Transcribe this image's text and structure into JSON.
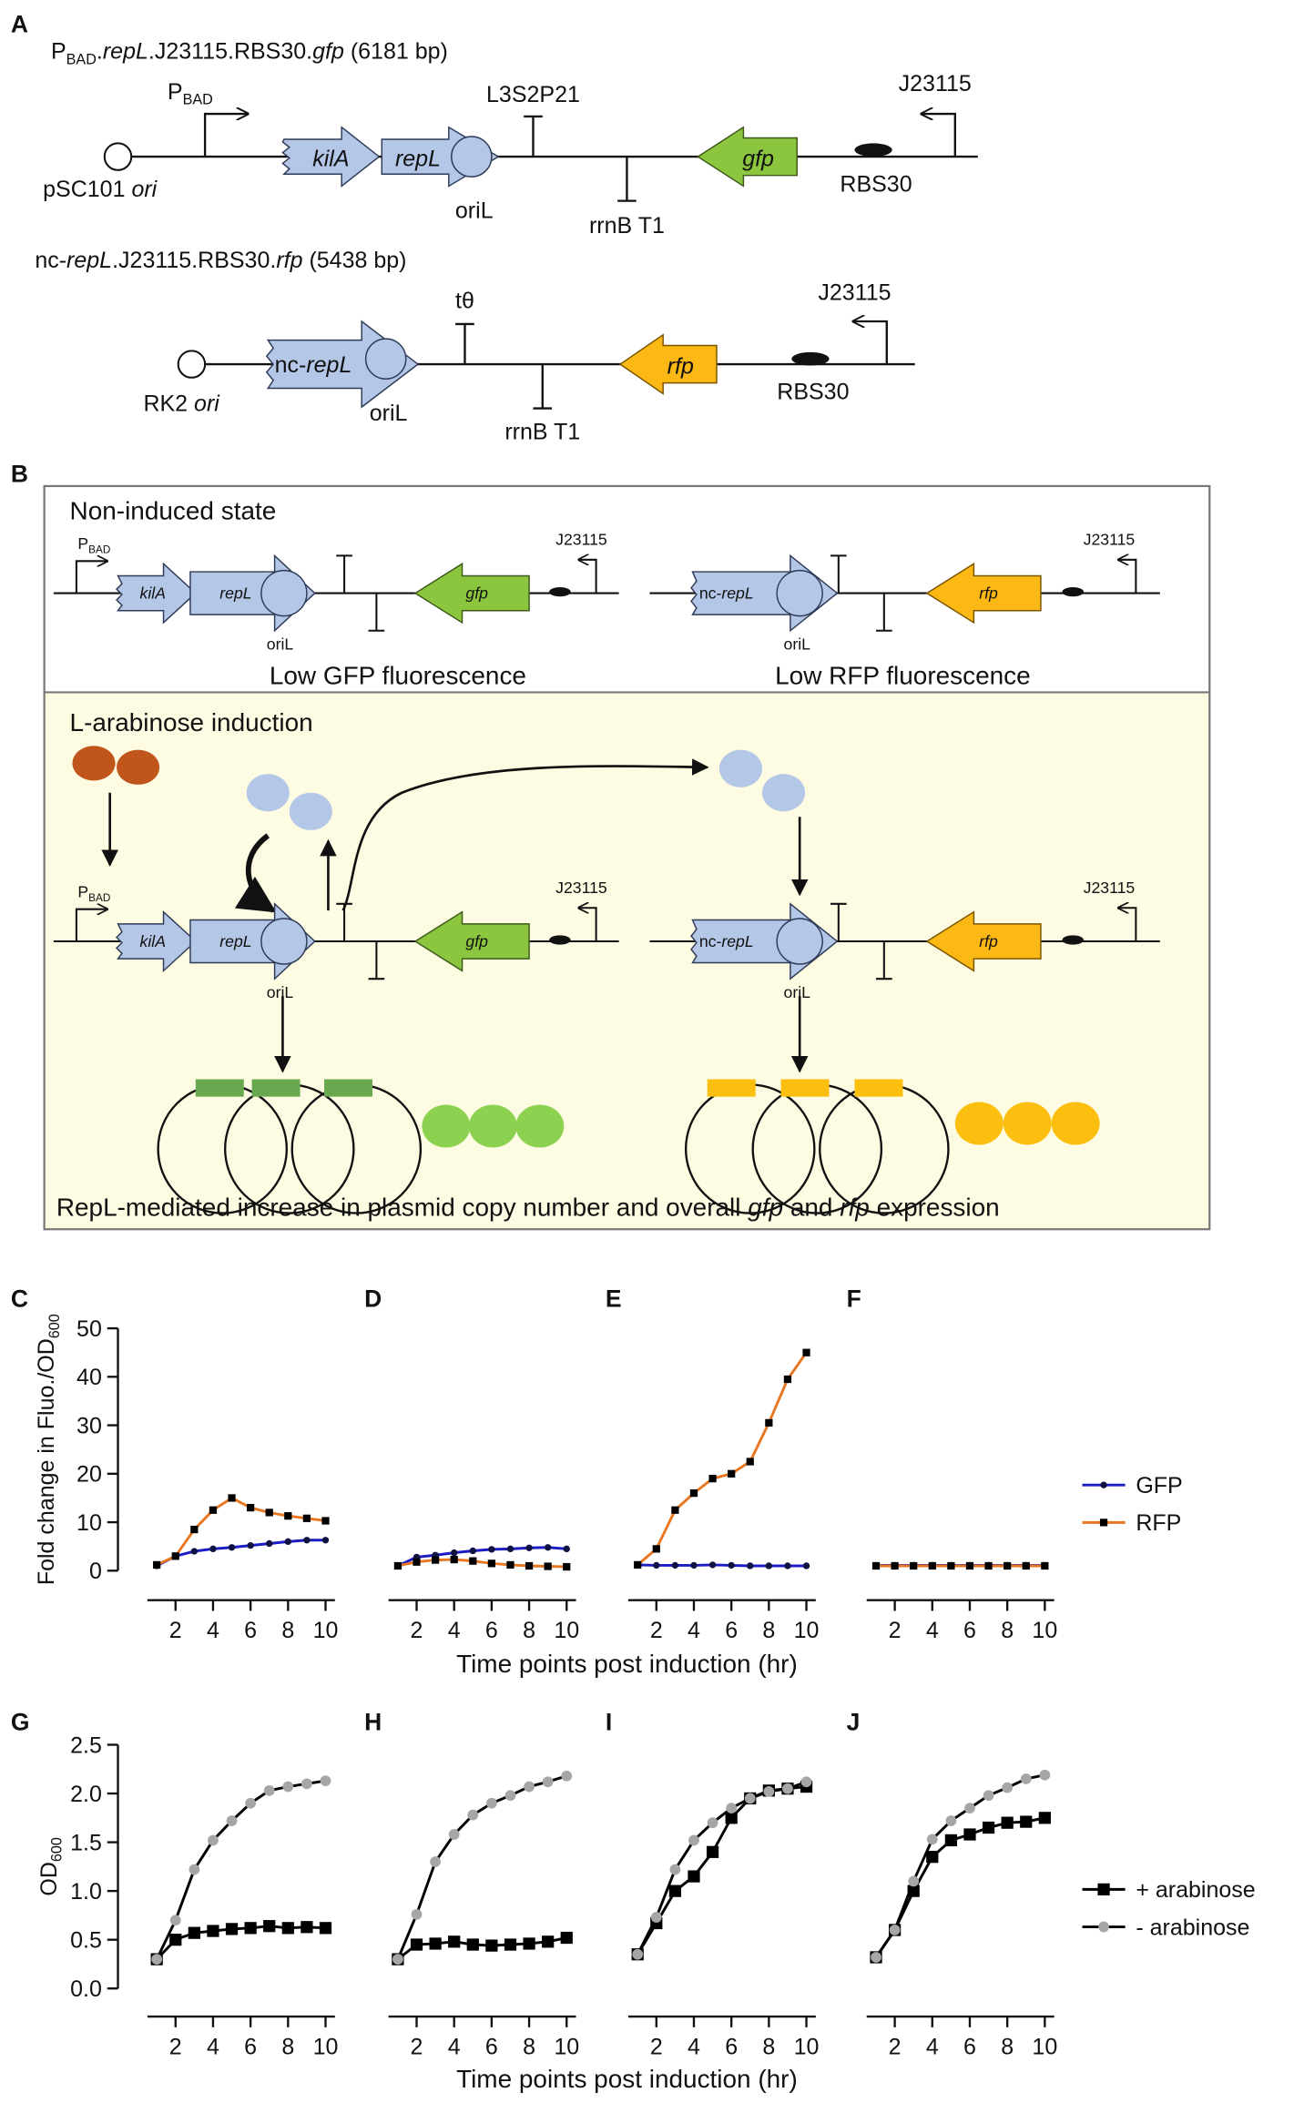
{
  "panel_a": {
    "label": "A",
    "construct1": {
      "title": [
        "P",
        "BAD",
        ".",
        "repL",
        ".J23115.RBS30.",
        "gfp",
        " (6181 bp)"
      ],
      "ori": [
        "pSC101 ",
        "ori"
      ],
      "promoter": [
        "P",
        "BAD"
      ],
      "genes": [
        "kilA",
        "repL",
        "gfp"
      ],
      "ori_l": "oriL",
      "terminators": [
        "L3S2P21",
        "rrnB T1"
      ],
      "rbs": "RBS30",
      "promoter2": "J23115"
    },
    "construct2": {
      "title": [
        "nc-",
        "repL",
        ".J23115.RBS30.",
        "rfp",
        " (5438 bp)"
      ],
      "ori": [
        "RK2 ",
        "ori"
      ],
      "genes": [
        [
          "nc-",
          "repL"
        ],
        "rfp"
      ],
      "ori_l": "oriL",
      "terminators": [
        "tθ",
        "rrnB T1"
      ],
      "rbs": "RBS30",
      "promoter2": "J23115"
    }
  },
  "panel_b": {
    "label": "B",
    "noninduced": {
      "heading": "Non-induced state",
      "left": {
        "promoter": [
          "P",
          "BAD"
        ],
        "genes": [
          "kilA",
          "repL",
          "gfp"
        ],
        "ori_l": "oriL",
        "promoter2": "J23115",
        "caption": "Low GFP fluorescence"
      },
      "right": {
        "genes": [
          [
            "nc-",
            "repL"
          ],
          "rfp"
        ],
        "ori_l": "oriL",
        "promoter2": "J23115",
        "caption": "Low RFP fluorescence"
      }
    },
    "induced": {
      "heading": "L-arabinose induction",
      "left": {
        "promoter": [
          "P",
          "BAD"
        ],
        "genes": [
          "kilA",
          "repL",
          "gfp"
        ],
        "ori_l": "oriL",
        "promoter2": "J23115"
      },
      "right": {
        "genes": [
          [
            "nc-",
            "repL"
          ],
          "rfp"
        ],
        "ori_l": "oriL",
        "promoter2": "J23115"
      },
      "caption": [
        "RepL-mediated increase in plasmid copy number and overall ",
        "gfp",
        " and ",
        "rfp",
        " expression"
      ]
    }
  },
  "shared": {
    "xlabel_top": "Time points post induction (hr)",
    "xlabel_bottom": "Time points post induction (hr)"
  },
  "chart_data": [
    {
      "type": "line",
      "panel": "C",
      "x": [
        1,
        2,
        3,
        4,
        5,
        6,
        7,
        8,
        9,
        10
      ],
      "xlim": [
        0.5,
        10.5
      ],
      "xticks": [
        2,
        4,
        6,
        8,
        10
      ],
      "ylim": [
        0,
        50
      ],
      "yticks": [
        0,
        10,
        20,
        30,
        40,
        50
      ],
      "ylabel": "Fold change in Fluo./OD",
      "ylabel_sub": "600",
      "series": [
        {
          "name": "GFP",
          "color": "#1c1cc4",
          "marker": "circle",
          "marker_color": "#111144",
          "values": [
            1,
            3,
            4,
            4.5,
            4.8,
            5.2,
            5.6,
            6,
            6.3,
            6.3
          ]
        },
        {
          "name": "RFP",
          "color": "#e87722",
          "marker": "square",
          "marker_color": "#000000",
          "values": [
            1.2,
            3,
            8.5,
            12.5,
            15,
            13,
            12,
            11.3,
            10.8,
            10.3
          ]
        }
      ]
    },
    {
      "type": "line",
      "panel": "D",
      "x": [
        1,
        2,
        3,
        4,
        5,
        6,
        7,
        8,
        9,
        10
      ],
      "xlim": [
        0.5,
        10.5
      ],
      "xticks": [
        2,
        4,
        6,
        8,
        10
      ],
      "ylim": [
        0,
        50
      ],
      "series": [
        {
          "name": "GFP",
          "color": "#1c1cc4",
          "marker": "circle",
          "marker_color": "#111144",
          "values": [
            1,
            2.8,
            3.2,
            3.7,
            4.1,
            4.4,
            4.5,
            4.7,
            4.8,
            4.5
          ]
        },
        {
          "name": "RFP",
          "color": "#e87722",
          "marker": "square",
          "marker_color": "#000000",
          "values": [
            1,
            1.8,
            2.2,
            2.3,
            2,
            1.5,
            1.2,
            1,
            0.9,
            0.8
          ]
        }
      ]
    },
    {
      "type": "line",
      "panel": "E",
      "x": [
        1,
        2,
        3,
        4,
        5,
        6,
        7,
        8,
        9,
        10
      ],
      "xlim": [
        0.5,
        10.5
      ],
      "xticks": [
        2,
        4,
        6,
        8,
        10
      ],
      "ylim": [
        0,
        50
      ],
      "series": [
        {
          "name": "GFP",
          "color": "#1c1cc4",
          "marker": "circle",
          "marker_color": "#111144",
          "values": [
            1.2,
            1.1,
            1.1,
            1.1,
            1.2,
            1.1,
            1,
            1,
            1,
            1
          ]
        },
        {
          "name": "RFP",
          "color": "#e87722",
          "marker": "square",
          "marker_color": "#000000",
          "values": [
            1.2,
            4.5,
            12.5,
            16,
            19,
            20,
            22.5,
            30.5,
            39.5,
            45
          ]
        }
      ]
    },
    {
      "type": "line",
      "panel": "F",
      "x": [
        1,
        2,
        3,
        4,
        5,
        6,
        7,
        8,
        9,
        10
      ],
      "xlim": [
        0.5,
        10.5
      ],
      "xticks": [
        2,
        4,
        6,
        8,
        10
      ],
      "ylim": [
        0,
        50
      ],
      "legend": "right",
      "series": [
        {
          "name": "GFP",
          "color": "#1c1cc4",
          "marker": "circle",
          "marker_color": "#111144",
          "values": [
            1.1,
            1.1,
            1.1,
            1.1,
            1.1,
            1.1,
            1.1,
            1.1,
            1.1,
            1.1
          ]
        },
        {
          "name": "RFP",
          "color": "#e87722",
          "marker": "square",
          "marker_color": "#000000",
          "values": [
            1,
            1,
            1,
            1,
            1,
            1,
            1,
            1,
            1,
            1
          ]
        }
      ]
    },
    {
      "type": "line",
      "panel": "G",
      "x": [
        1,
        2,
        3,
        4,
        5,
        6,
        7,
        8,
        9,
        10
      ],
      "xlim": [
        0.5,
        10.5
      ],
      "xticks": [
        2,
        4,
        6,
        8,
        10
      ],
      "ylim": [
        0,
        2.5
      ],
      "yticks": [
        {
          "value": 0,
          "label": "0.0"
        },
        0.5,
        {
          "value": 1,
          "label": "1.0"
        },
        1.5,
        {
          "value": 2,
          "label": "2.0"
        },
        2.5
      ],
      "ylabel": "OD",
      "ylabel_sub": "600",
      "series": [
        {
          "name": "+ arabinose",
          "color": "#000000",
          "marker": "square",
          "marker_color": "#000000",
          "values": [
            0.3,
            0.5,
            0.57,
            0.59,
            0.61,
            0.62,
            0.64,
            0.62,
            0.63,
            0.62
          ]
        },
        {
          "name": "- arabinose",
          "color": "#000000",
          "marker": "circle",
          "marker_color": "#a6a6a6",
          "values": [
            0.3,
            0.7,
            1.22,
            1.52,
            1.72,
            1.9,
            2.03,
            2.07,
            2.1,
            2.13
          ]
        }
      ]
    },
    {
      "type": "line",
      "panel": "H",
      "x": [
        1,
        2,
        3,
        4,
        5,
        6,
        7,
        8,
        9,
        10
      ],
      "xlim": [
        0.5,
        10.5
      ],
      "xticks": [
        2,
        4,
        6,
        8,
        10
      ],
      "ylim": [
        0,
        2.5
      ],
      "series": [
        {
          "name": "+ arabinose",
          "color": "#000000",
          "marker": "square",
          "marker_color": "#000000",
          "values": [
            0.3,
            0.45,
            0.46,
            0.48,
            0.45,
            0.44,
            0.45,
            0.46,
            0.48,
            0.52
          ]
        },
        {
          "name": "- arabinose",
          "color": "#000000",
          "marker": "circle",
          "marker_color": "#a6a6a6",
          "values": [
            0.3,
            0.76,
            1.3,
            1.58,
            1.78,
            1.9,
            1.98,
            2.07,
            2.12,
            2.18
          ]
        }
      ]
    },
    {
      "type": "line",
      "panel": "I",
      "x": [
        1,
        2,
        3,
        4,
        5,
        6,
        7,
        8,
        9,
        10
      ],
      "xlim": [
        0.5,
        10.5
      ],
      "xticks": [
        2,
        4,
        6,
        8,
        10
      ],
      "ylim": [
        0,
        2.5
      ],
      "series": [
        {
          "name": "+ arabinose",
          "color": "#000000",
          "marker": "square",
          "marker_color": "#000000",
          "values": [
            0.35,
            0.67,
            1,
            1.15,
            1.4,
            1.75,
            1.95,
            2.03,
            2.05,
            2.07
          ]
        },
        {
          "name": "- arabinose",
          "color": "#000000",
          "marker": "circle",
          "marker_color": "#a6a6a6",
          "values": [
            0.35,
            0.73,
            1.22,
            1.52,
            1.7,
            1.85,
            1.95,
            2.02,
            2.05,
            2.12
          ]
        }
      ]
    },
    {
      "type": "line",
      "panel": "J",
      "x": [
        1,
        2,
        3,
        4,
        5,
        6,
        7,
        8,
        9,
        10
      ],
      "xlim": [
        0.5,
        10.5
      ],
      "xticks": [
        2,
        4,
        6,
        8,
        10
      ],
      "ylim": [
        0,
        2.5
      ],
      "legend": "right",
      "series": [
        {
          "name": "+ arabinose",
          "color": "#000000",
          "marker": "square",
          "marker_color": "#000000",
          "values": [
            0.32,
            0.6,
            1,
            1.35,
            1.52,
            1.58,
            1.65,
            1.7,
            1.71,
            1.75
          ]
        },
        {
          "name": "- arabinose",
          "color": "#000000",
          "marker": "circle",
          "marker_color": "#a6a6a6",
          "values": [
            0.32,
            0.6,
            1.1,
            1.53,
            1.72,
            1.85,
            1.98,
            2.06,
            2.15,
            2.19
          ]
        }
      ]
    }
  ]
}
